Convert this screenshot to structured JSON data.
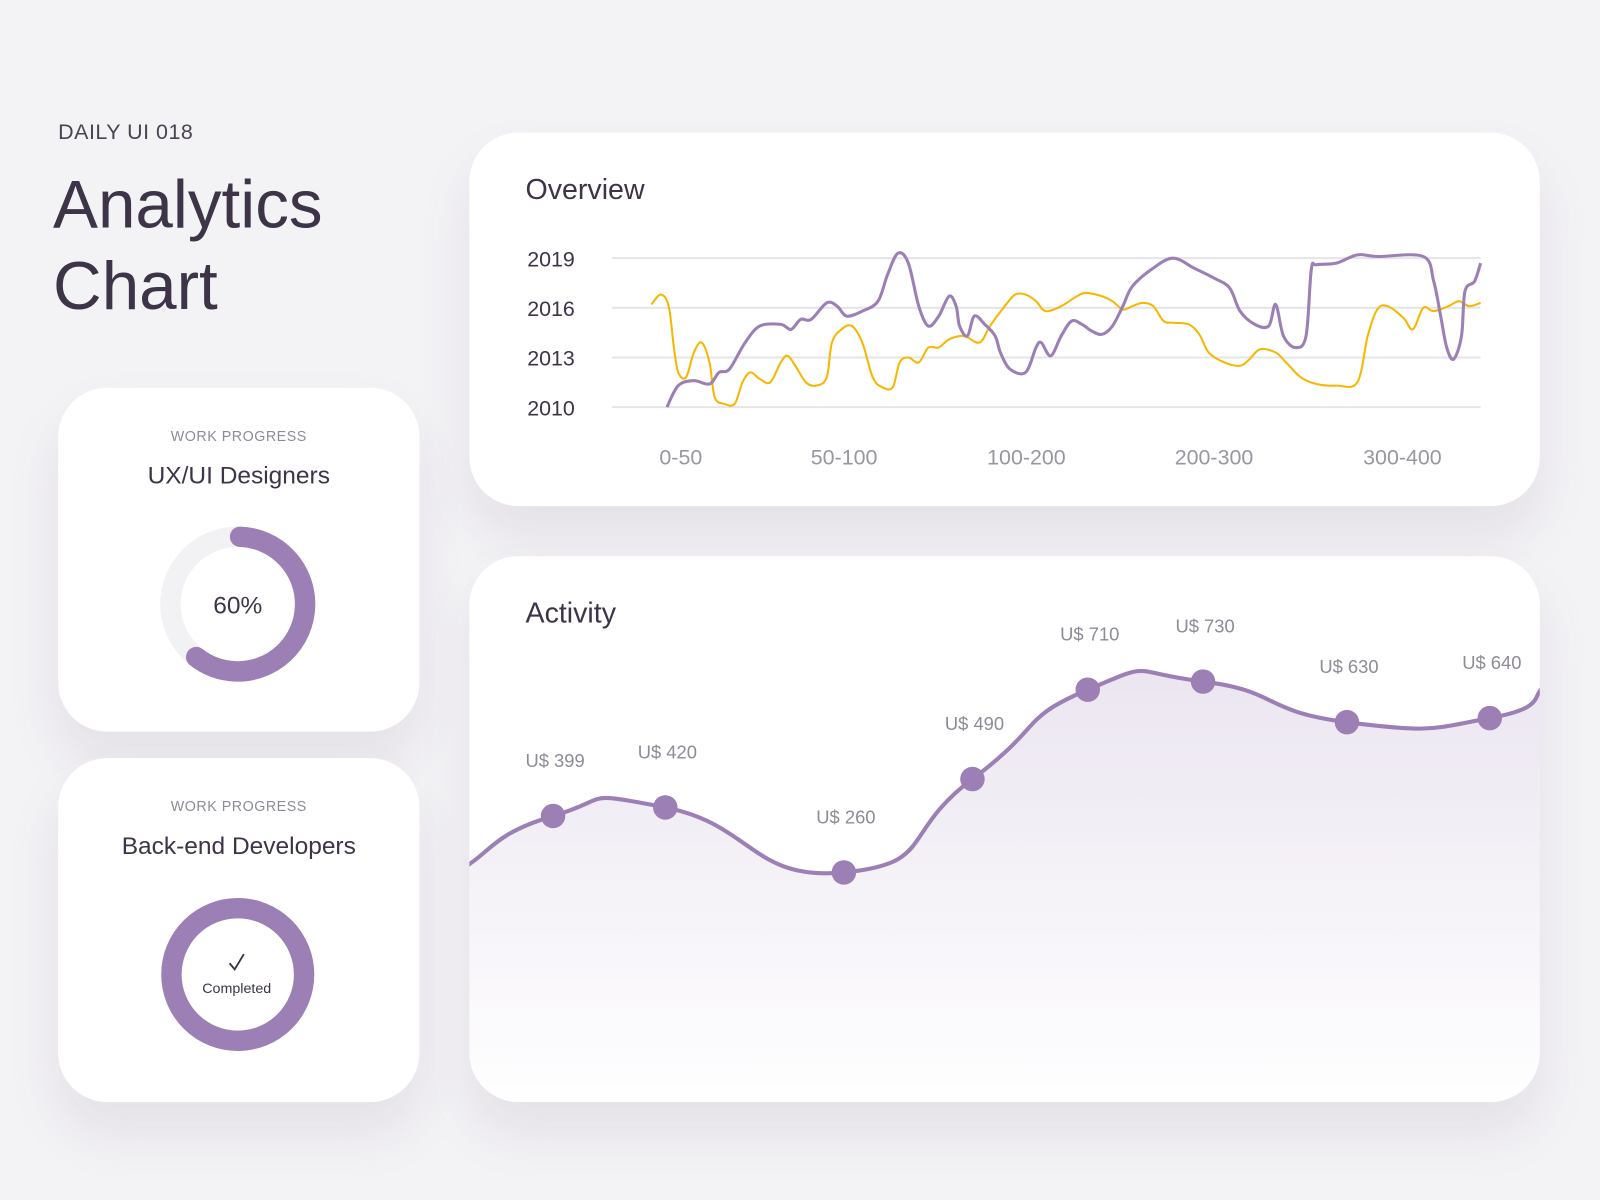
{
  "header": {
    "eyebrow": "DAILY UI 018",
    "title_line1": "Analytics",
    "title_line2": "Chart"
  },
  "colors": {
    "background": "#f3f2f5",
    "accent": "#9b7fb5",
    "secondary": "#f5b700",
    "text": "#3d3448"
  },
  "progress_cards": [
    {
      "eyebrow": "WORK PROGRESS",
      "title": "UX/UI Designers",
      "percent": 60,
      "label": "60%"
    },
    {
      "eyebrow": "WORK PROGRESS",
      "title": "Back-end Developers",
      "percent": 100,
      "label": "Completed",
      "icon": "check-icon"
    }
  ],
  "chart_data": [
    {
      "type": "line",
      "title": "Overview",
      "yticks": [
        "2019",
        "2016",
        "2013",
        "2010"
      ],
      "ylim": [
        2010,
        2019
      ],
      "xlim": [
        0,
        100
      ],
      "xticks": [
        {
          "label": "0-50",
          "at": 7.9
        },
        {
          "label": "50-100",
          "at": 26.7
        },
        {
          "label": "100-200",
          "at": 47.7
        },
        {
          "label": "200-300",
          "at": 69.3
        },
        {
          "label": "300-400",
          "at": 91.0
        }
      ],
      "grid": true,
      "series": [
        {
          "name": "purple",
          "color": "#9b7fb5",
          "points": [
            [
              6.3,
              2010.0
            ],
            [
              7.6,
              2011.3
            ],
            [
              9.4,
              2011.6
            ],
            [
              11.2,
              2011.4
            ],
            [
              12.3,
              2012.1
            ],
            [
              13.5,
              2012.3
            ],
            [
              15.3,
              2013.9
            ],
            [
              17.0,
              2014.9
            ],
            [
              19.4,
              2015.0
            ],
            [
              20.6,
              2014.7
            ],
            [
              21.7,
              2015.3
            ],
            [
              22.9,
              2015.3
            ],
            [
              24.7,
              2016.3
            ],
            [
              25.9,
              2016.1
            ],
            [
              27.0,
              2015.5
            ],
            [
              28.8,
              2015.8
            ],
            [
              30.6,
              2016.4
            ],
            [
              31.7,
              2018.0
            ],
            [
              32.9,
              2019.3
            ],
            [
              34.1,
              2018.7
            ],
            [
              35.3,
              2016.1
            ],
            [
              36.4,
              2014.9
            ],
            [
              37.6,
              2015.5
            ],
            [
              38.8,
              2016.7
            ],
            [
              39.6,
              2016.1
            ],
            [
              40.0,
              2014.9
            ],
            [
              40.9,
              2014.3
            ],
            [
              41.7,
              2015.5
            ],
            [
              42.9,
              2015.0
            ],
            [
              44.1,
              2014.3
            ],
            [
              44.7,
              2013.3
            ],
            [
              45.8,
              2012.3
            ],
            [
              47.6,
              2012.1
            ],
            [
              48.8,
              2013.6
            ],
            [
              49.4,
              2013.9
            ],
            [
              50.5,
              2013.1
            ],
            [
              51.7,
              2014.3
            ],
            [
              52.9,
              2015.2
            ],
            [
              54.1,
              2015.0
            ],
            [
              55.2,
              2014.6
            ],
            [
              56.4,
              2014.4
            ],
            [
              57.6,
              2014.9
            ],
            [
              58.8,
              2016.1
            ],
            [
              59.9,
              2017.3
            ],
            [
              62.3,
              2018.4
            ],
            [
              64.6,
              2019.0
            ],
            [
              67.0,
              2018.4
            ],
            [
              69.3,
              2017.8
            ],
            [
              71.1,
              2017.2
            ],
            [
              72.3,
              2015.8
            ],
            [
              74.0,
              2015.0
            ],
            [
              75.6,
              2014.9
            ],
            [
              76.4,
              2016.2
            ],
            [
              77.3,
              2014.3
            ],
            [
              78.7,
              2013.6
            ],
            [
              79.9,
              2014.3
            ],
            [
              80.5,
              2018.3
            ],
            [
              81.1,
              2018.6
            ],
            [
              83.4,
              2018.7
            ],
            [
              85.8,
              2019.2
            ],
            [
              88.1,
              2019.1
            ],
            [
              93.4,
              2019.1
            ],
            [
              94.6,
              2017.6
            ],
            [
              95.4,
              2015.5
            ],
            [
              96.1,
              2013.6
            ],
            [
              96.9,
              2012.9
            ],
            [
              97.8,
              2014.3
            ],
            [
              98.2,
              2017.0
            ],
            [
              99.3,
              2017.6
            ],
            [
              100,
              2018.7
            ]
          ]
        },
        {
          "name": "yellow",
          "color": "#f5b700",
          "points": [
            [
              4.5,
              2016.2
            ],
            [
              5.6,
              2016.8
            ],
            [
              6.5,
              2016.1
            ],
            [
              7.1,
              2013.6
            ],
            [
              7.6,
              2012.1
            ],
            [
              8.5,
              2011.8
            ],
            [
              9.4,
              2013.3
            ],
            [
              10.3,
              2013.9
            ],
            [
              11.2,
              2012.7
            ],
            [
              11.8,
              2010.6
            ],
            [
              12.9,
              2010.2
            ],
            [
              14.1,
              2010.2
            ],
            [
              15.0,
              2011.5
            ],
            [
              15.9,
              2012.1
            ],
            [
              17.0,
              2011.7
            ],
            [
              18.2,
              2011.5
            ],
            [
              19.4,
              2012.7
            ],
            [
              20.2,
              2013.1
            ],
            [
              21.2,
              2012.4
            ],
            [
              22.3,
              2011.5
            ],
            [
              23.5,
              2011.3
            ],
            [
              24.7,
              2011.8
            ],
            [
              25.3,
              2013.9
            ],
            [
              26.4,
              2014.7
            ],
            [
              27.6,
              2014.9
            ],
            [
              28.8,
              2013.9
            ],
            [
              30.0,
              2011.8
            ],
            [
              31.1,
              2011.2
            ],
            [
              32.3,
              2011.2
            ],
            [
              33.1,
              2012.7
            ],
            [
              34.1,
              2013.0
            ],
            [
              35.3,
              2012.7
            ],
            [
              36.4,
              2013.6
            ],
            [
              37.6,
              2013.6
            ],
            [
              38.8,
              2014.1
            ],
            [
              40.5,
              2014.3
            ],
            [
              42.3,
              2013.9
            ],
            [
              43.5,
              2014.9
            ],
            [
              45.2,
              2016.1
            ],
            [
              46.4,
              2016.8
            ],
            [
              47.6,
              2016.8
            ],
            [
              48.8,
              2016.4
            ],
            [
              49.9,
              2015.8
            ],
            [
              51.7,
              2016.1
            ],
            [
              53.5,
              2016.7
            ],
            [
              54.6,
              2016.9
            ],
            [
              56.4,
              2016.7
            ],
            [
              57.6,
              2016.4
            ],
            [
              58.8,
              2015.9
            ],
            [
              59.9,
              2016.1
            ],
            [
              61.1,
              2016.3
            ],
            [
              62.3,
              2016.1
            ],
            [
              63.5,
              2015.2
            ],
            [
              64.6,
              2015.1
            ],
            [
              66.4,
              2015.0
            ],
            [
              67.6,
              2014.4
            ],
            [
              68.7,
              2013.3
            ],
            [
              70.5,
              2012.7
            ],
            [
              72.3,
              2012.5
            ],
            [
              73.4,
              2012.9
            ],
            [
              74.6,
              2013.5
            ],
            [
              76.4,
              2013.3
            ],
            [
              77.6,
              2012.7
            ],
            [
              79.3,
              2011.8
            ],
            [
              81.1,
              2011.4
            ],
            [
              83.4,
              2011.3
            ],
            [
              85.8,
              2011.5
            ],
            [
              87.0,
              2014.3
            ],
            [
              88.1,
              2015.9
            ],
            [
              89.3,
              2016.1
            ],
            [
              91.1,
              2015.4
            ],
            [
              92.2,
              2014.7
            ],
            [
              93.4,
              2016.0
            ],
            [
              94.6,
              2015.8
            ],
            [
              96.3,
              2016.1
            ],
            [
              97.5,
              2016.4
            ],
            [
              98.7,
              2016.1
            ],
            [
              100,
              2016.3
            ]
          ]
        }
      ]
    },
    {
      "type": "area",
      "title": "Activity",
      "values": [
        399,
        420,
        260,
        490,
        710,
        730,
        630,
        640
      ],
      "labels": [
        "U$ 399",
        "U$ 420",
        "U$ 260",
        "U$ 490",
        "U$ 710",
        "U$ 730",
        "U$ 630",
        "U$ 640"
      ],
      "color": "#9b7fb5"
    }
  ]
}
